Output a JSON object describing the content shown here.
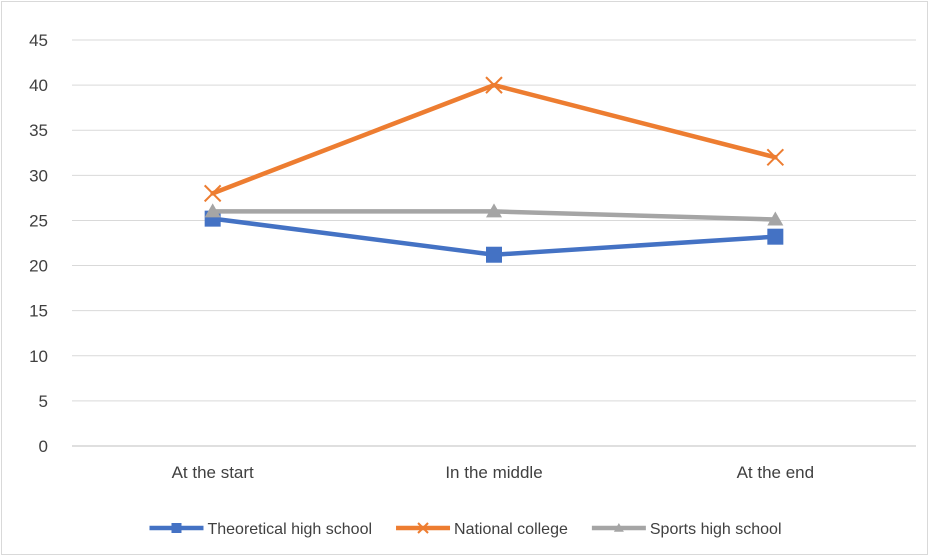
{
  "chart_data": {
    "type": "line",
    "title": "",
    "xlabel": "",
    "ylabel": "",
    "categories": [
      "At the start",
      "In the middle",
      "At the end"
    ],
    "ylim": [
      0,
      45
    ],
    "yticks": [
      0,
      5,
      10,
      15,
      20,
      25,
      30,
      35,
      40,
      45
    ],
    "grid": true,
    "legend_position": "bottom",
    "series": [
      {
        "name": "Theoretical high school",
        "values": [
          25.2,
          21.2,
          23.2
        ],
        "color": "#4472c4",
        "marker": "square"
      },
      {
        "name": "National college",
        "values": [
          28,
          40,
          32
        ],
        "color": "#ed7d31",
        "marker": "x"
      },
      {
        "name": "Sports high school",
        "values": [
          26,
          26,
          25.1
        ],
        "color": "#a5a5a5",
        "marker": "triangle"
      }
    ]
  }
}
